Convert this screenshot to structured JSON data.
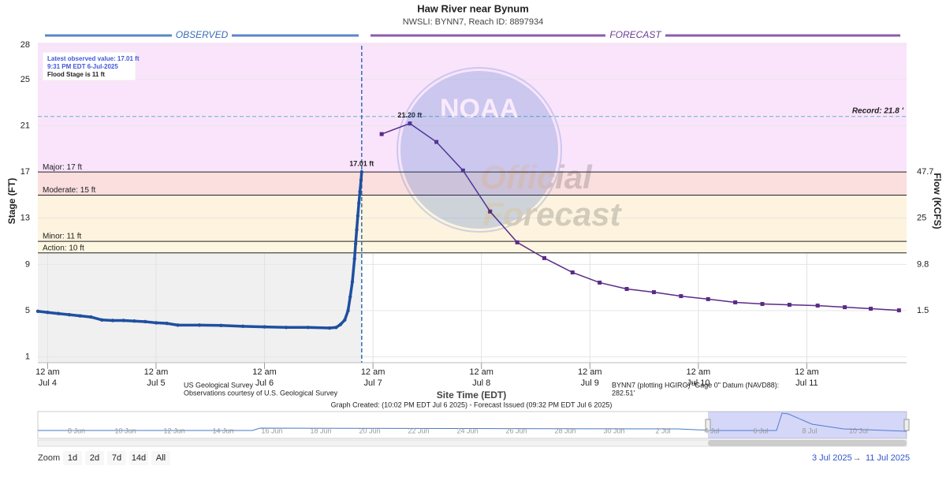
{
  "chart_data": {
    "type": "hydrograph",
    "title": "Haw River near Bynum",
    "subtitle": "NWSLI: BYNN7, Reach ID: 8897934",
    "ylabel": "Stage (FT)",
    "y2label": "Flow (KCFS)",
    "xlabel": "Site Time (EDT)",
    "period_labels": [
      "OBSERVED",
      "FORECAST"
    ],
    "ylim": [
      0.5,
      28.2
    ],
    "yticks": [
      1,
      5,
      9,
      13,
      17,
      21,
      25,
      28
    ],
    "y2ticks": [
      {
        "value": 47.7,
        "stage": 17
      },
      {
        "value": 25,
        "stage": 13
      },
      {
        "value": 9.8,
        "stage": 9
      },
      {
        "value": 1.5,
        "stage": 5
      }
    ],
    "xlim": [
      3.91,
      11.92
    ],
    "xticks": [
      {
        "value": 4,
        "label": "12 am",
        "sublabel": "Jul 4"
      },
      {
        "value": 5,
        "label": "12 am",
        "sublabel": "Jul 5"
      },
      {
        "value": 6,
        "label": "12 am",
        "sublabel": "Jul 6"
      },
      {
        "value": 7,
        "label": "12 am",
        "sublabel": "Jul 7"
      },
      {
        "value": 8,
        "label": "12 am",
        "sublabel": "Jul 8"
      },
      {
        "value": 9,
        "label": "12 am",
        "sublabel": "Jul 9"
      },
      {
        "value": 10,
        "label": "12 am",
        "sublabel": "Jul 10"
      },
      {
        "value": 11,
        "label": "12 am",
        "sublabel": "Jul 11"
      }
    ],
    "flood_stages": [
      {
        "name": "Major: 17 ft",
        "value": 17,
        "color": "#fbdede"
      },
      {
        "name": "Moderate: 15 ft",
        "value": 15,
        "color": "#fdf3de"
      },
      {
        "name": "Minor: 11 ft",
        "value": 11,
        "color": "#fdf6e0"
      },
      {
        "name": "Action: 10 ft",
        "value": 10,
        "color": "#fffbea"
      }
    ],
    "above_major_color": "#fae4fb",
    "record": {
      "label": "Record: 21.8 '",
      "value": 21.8
    },
    "series": [
      {
        "name": "Observed",
        "color": "#1f4fa0",
        "x": [
          3.91,
          4.0,
          4.1,
          4.2,
          4.3,
          4.4,
          4.5,
          4.6,
          4.7,
          4.8,
          4.9,
          5.0,
          5.1,
          5.2,
          5.4,
          5.6,
          5.8,
          6.0,
          6.2,
          6.4,
          6.6,
          6.66,
          6.7,
          6.74,
          6.77,
          6.79,
          6.81,
          6.83,
          6.84,
          6.85,
          6.86,
          6.87,
          6.88,
          6.89,
          6.896
        ],
        "values": [
          4.95,
          4.85,
          4.75,
          4.65,
          4.55,
          4.45,
          4.2,
          4.15,
          4.15,
          4.1,
          4.05,
          3.95,
          3.9,
          3.75,
          3.75,
          3.72,
          3.65,
          3.6,
          3.55,
          3.55,
          3.5,
          3.55,
          3.8,
          4.2,
          5.0,
          6.2,
          7.5,
          9.5,
          10.8,
          12.0,
          13.2,
          14.3,
          15.3,
          16.3,
          17.01
        ],
        "value_labels": [
          null,
          null,
          null,
          null,
          null,
          null,
          null,
          null,
          null,
          null,
          null,
          null,
          null,
          null,
          null,
          null,
          null,
          null,
          null,
          null,
          null,
          null,
          null,
          null,
          null,
          null,
          null,
          null,
          null,
          null,
          null,
          null,
          null,
          null,
          "17.01 ft"
        ]
      },
      {
        "name": "Forecast",
        "color": "#5b2a86",
        "x": [
          7.08,
          7.34,
          7.585,
          7.83,
          8.08,
          8.33,
          8.58,
          8.84,
          9.09,
          9.34,
          9.59,
          9.84,
          10.09,
          10.34,
          10.59,
          10.84,
          11.1,
          11.35,
          11.59,
          11.85
        ],
        "values": [
          20.28,
          21.2,
          19.6,
          17.13,
          13.58,
          10.91,
          9.55,
          8.31,
          7.43,
          6.88,
          6.6,
          6.26,
          6.0,
          5.72,
          5.58,
          5.51,
          5.44,
          5.3,
          5.17,
          5.03
        ],
        "value_labels": [
          null,
          "21.20 ft",
          null,
          null,
          null,
          null,
          null,
          null,
          null,
          null,
          null,
          null,
          null,
          null,
          null,
          null,
          null,
          null,
          null,
          null
        ]
      }
    ],
    "info_box": [
      "Latest observed value: 17.01 ft",
      "9:31 PM EDT 6-Jul-2025",
      "Flood Stage is 11 ft"
    ],
    "watermark": [
      "NOAA",
      "Official",
      "Forecast"
    ],
    "credits": [
      "US Geological Survey",
      "Observations courtesy of U.S. Geological Survey"
    ],
    "datum_note": [
      "BYNN7 (plotting HGIRG) \"Gage 0\" Datum (NAVD88):",
      "282.51'"
    ],
    "graph_note": "Graph Created: (10:02 PM EDT Jul 6 2025) - Forecast Issued (09:32 PM EDT Jul 6 2025)",
    "navigator_labels": [
      "8 Jun",
      "10 Jun",
      "12 Jun",
      "14 Jun",
      "16 Jun",
      "18 Jun",
      "20 Jun",
      "22 Jun",
      "24 Jun",
      "26 Jun",
      "28 Jun",
      "30 Jun",
      "2 Jul",
      "4 Jul",
      "6 Jul",
      "8 Jul",
      "10 Jul"
    ],
    "zoom": {
      "label": "Zoom",
      "buttons": [
        "1d",
        "2d",
        "7d",
        "14d",
        "All"
      ]
    },
    "range": [
      "3 Jul 2025",
      "→",
      "11 Jul 2025"
    ]
  }
}
